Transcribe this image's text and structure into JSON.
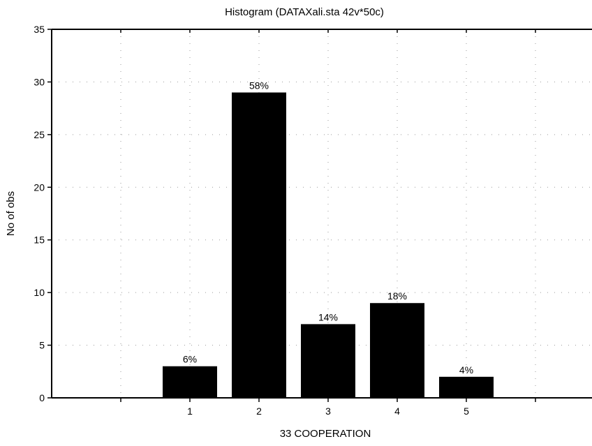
{
  "chart_data": {
    "type": "bar",
    "title": "Histogram (DATAXali.sta 42v*50c)",
    "xlabel": "33 COOPERATION",
    "ylabel": "No of obs",
    "categories": [
      "1",
      "2",
      "3",
      "4",
      "5"
    ],
    "values": [
      3,
      29,
      7,
      9,
      2
    ],
    "bar_labels": [
      "6%",
      "58%",
      "14%",
      "18%",
      "4%"
    ],
    "yticks": [
      "0",
      "5",
      "10",
      "15",
      "20",
      "25",
      "30",
      "35"
    ],
    "ylim": [
      0,
      35
    ],
    "grid": true,
    "legend": "none",
    "colors": {
      "bar": "#000000",
      "axis": "#000000",
      "grid": "#9a9a9a",
      "background": "#ffffff"
    }
  }
}
